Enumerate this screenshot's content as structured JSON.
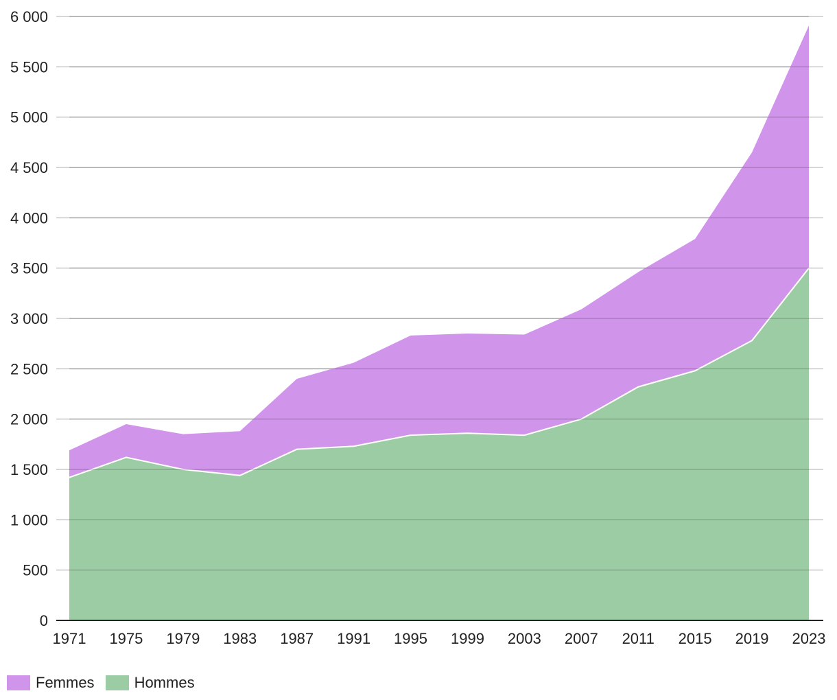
{
  "chart_data": {
    "type": "area",
    "stacked": true,
    "title": "",
    "xlabel": "",
    "ylabel": "",
    "x": [
      1971,
      1975,
      1979,
      1983,
      1987,
      1991,
      1995,
      1999,
      2003,
      2007,
      2011,
      2015,
      2019,
      2023
    ],
    "x_tick_labels": [
      "1971",
      "1975",
      "1979",
      "1983",
      "1987",
      "1991",
      "1995",
      "1999",
      "2003",
      "2007",
      "2011",
      "2015",
      "2019",
      "2023"
    ],
    "ylim": [
      0,
      6000
    ],
    "y_ticks": [
      0,
      500,
      1000,
      1500,
      2000,
      2500,
      3000,
      3500,
      4000,
      4500,
      5000,
      5500,
      6000
    ],
    "y_tick_labels": [
      "0",
      "500",
      "1 000",
      "1 500",
      "2 000",
      "2 500",
      "3 000",
      "3 500",
      "4 000",
      "4 500",
      "5 000",
      "5 500",
      "6 000"
    ],
    "grid": true,
    "legend_position": "bottom-left",
    "series": [
      {
        "name": "Hommes",
        "color": "#9ccca4",
        "values": [
          1420,
          1620,
          1500,
          1440,
          1700,
          1730,
          1840,
          1860,
          1840,
          2000,
          2320,
          2480,
          2780,
          3500
        ]
      },
      {
        "name": "Femmes",
        "color": "#d194eb",
        "values": [
          270,
          330,
          350,
          440,
          700,
          830,
          990,
          990,
          1000,
          1090,
          1140,
          1310,
          1870,
          2410
        ]
      }
    ],
    "legend": [
      "Femmes",
      "Hommes"
    ]
  }
}
